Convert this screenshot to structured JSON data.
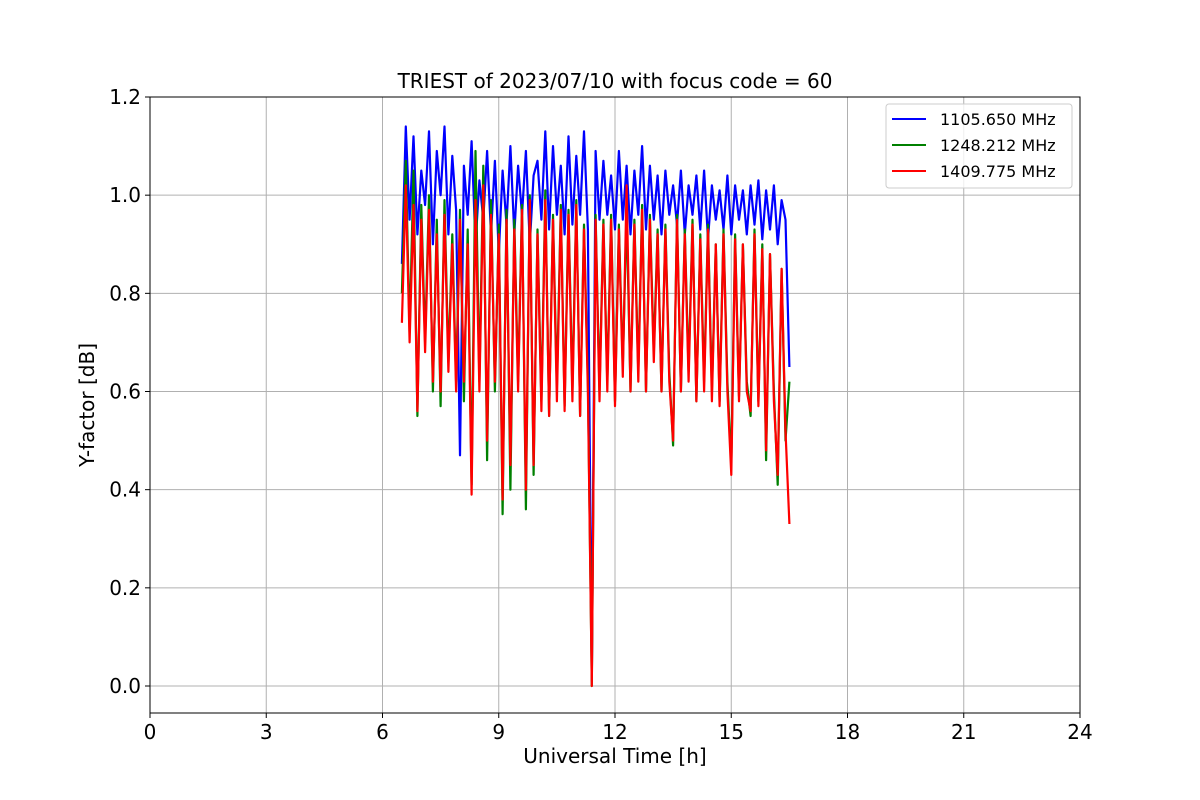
{
  "chart_data": {
    "type": "line",
    "title": "TRIEST of 2023/07/10 with focus code = 60",
    "xlabel": "Universal Time [h]",
    "ylabel": "Y-factor [dB]",
    "xlim": [
      0,
      24
    ],
    "ylim": [
      -0.055,
      1.2
    ],
    "xticks": [
      0,
      3,
      6,
      9,
      12,
      15,
      18,
      21,
      24
    ],
    "xtick_labels": [
      "0",
      "3",
      "6",
      "9",
      "12",
      "15",
      "18",
      "21",
      "24"
    ],
    "yticks": [
      0.0,
      0.2,
      0.4,
      0.6,
      0.8,
      1.0,
      1.2
    ],
    "ytick_labels": [
      "0.0",
      "0.2",
      "0.4",
      "0.6",
      "0.8",
      "1.0",
      "1.2"
    ],
    "grid": true,
    "legend_position": "upper right",
    "series": [
      {
        "name": "1105.650 MHz",
        "color": "#0000ff",
        "x": [
          6.5,
          6.6,
          6.7,
          6.8,
          6.9,
          7.0,
          7.1,
          7.2,
          7.3,
          7.4,
          7.5,
          7.6,
          7.7,
          7.8,
          7.9,
          8.0,
          8.1,
          8.2,
          8.3,
          8.4,
          8.5,
          8.6,
          8.7,
          8.8,
          8.9,
          9.0,
          9.1,
          9.2,
          9.3,
          9.4,
          9.5,
          9.6,
          9.7,
          9.8,
          9.9,
          10.0,
          10.1,
          10.2,
          10.3,
          10.4,
          10.5,
          10.6,
          10.7,
          10.8,
          10.9,
          11.0,
          11.1,
          11.2,
          11.3,
          11.4,
          11.5,
          11.6,
          11.7,
          11.8,
          11.9,
          12.0,
          12.1,
          12.2,
          12.3,
          12.4,
          12.5,
          12.6,
          12.7,
          12.8,
          12.9,
          13.0,
          13.1,
          13.2,
          13.3,
          13.4,
          13.5,
          13.6,
          13.7,
          13.8,
          13.9,
          14.0,
          14.1,
          14.2,
          14.3,
          14.4,
          14.5,
          14.6,
          14.7,
          14.8,
          14.9,
          15.0,
          15.1,
          15.2,
          15.3,
          15.4,
          15.5,
          15.6,
          15.7,
          15.8,
          15.9,
          16.0,
          16.1,
          16.2,
          16.3,
          16.4,
          16.5
        ],
        "y": [
          0.86,
          1.14,
          0.95,
          1.12,
          0.92,
          1.05,
          0.98,
          1.13,
          0.9,
          1.09,
          1.0,
          1.14,
          0.92,
          1.08,
          0.97,
          0.47,
          1.06,
          0.96,
          1.11,
          0.9,
          1.03,
          0.95,
          1.09,
          0.92,
          1.07,
          0.88,
          1.05,
          0.94,
          1.1,
          0.92,
          1.06,
          0.96,
          1.09,
          0.9,
          1.04,
          1.07,
          0.95,
          1.13,
          0.93,
          1.1,
          0.96,
          1.06,
          0.92,
          1.12,
          0.94,
          1.08,
          0.96,
          1.13,
          0.93,
          0.01,
          1.09,
          0.95,
          1.07,
          0.96,
          1.04,
          0.93,
          1.09,
          0.95,
          1.06,
          0.92,
          1.05,
          0.96,
          1.1,
          0.93,
          1.06,
          0.95,
          1.04,
          0.92,
          1.05,
          0.96,
          1.02,
          0.94,
          1.05,
          0.92,
          1.02,
          0.96,
          1.04,
          0.93,
          1.05,
          0.91,
          1.02,
          0.95,
          1.01,
          0.93,
          1.04,
          0.92,
          1.02,
          0.95,
          1.01,
          0.92,
          1.02,
          0.94,
          1.03,
          0.91,
          1.01,
          0.93,
          1.02,
          0.9,
          0.99,
          0.95,
          0.65
        ]
      },
      {
        "name": "1248.212 MHz",
        "color": "#008000",
        "x": [
          6.5,
          6.6,
          6.7,
          6.8,
          6.9,
          7.0,
          7.1,
          7.2,
          7.3,
          7.4,
          7.5,
          7.6,
          7.7,
          7.8,
          7.9,
          8.0,
          8.1,
          8.2,
          8.3,
          8.4,
          8.5,
          8.6,
          8.7,
          8.8,
          8.9,
          9.0,
          9.1,
          9.2,
          9.3,
          9.4,
          9.5,
          9.6,
          9.7,
          9.8,
          9.9,
          10.0,
          10.1,
          10.2,
          10.3,
          10.4,
          10.5,
          10.6,
          10.7,
          10.8,
          10.9,
          11.0,
          11.1,
          11.2,
          11.3,
          11.4,
          11.5,
          11.6,
          11.7,
          11.8,
          11.9,
          12.0,
          12.1,
          12.2,
          12.3,
          12.4,
          12.5,
          12.6,
          12.7,
          12.8,
          12.9,
          13.0,
          13.1,
          13.2,
          13.3,
          13.4,
          13.5,
          13.6,
          13.7,
          13.8,
          13.9,
          14.0,
          14.1,
          14.2,
          14.3,
          14.4,
          14.5,
          14.6,
          14.7,
          14.8,
          14.9,
          15.0,
          15.1,
          15.2,
          15.3,
          15.4,
          15.5,
          15.6,
          15.7,
          15.8,
          15.9,
          16.0,
          16.1,
          16.2,
          16.3,
          16.4,
          16.5
        ],
        "y": [
          0.8,
          1.07,
          0.72,
          1.05,
          0.55,
          0.98,
          0.7,
          1.0,
          0.6,
          0.95,
          0.57,
          0.99,
          0.66,
          0.92,
          0.62,
          0.97,
          0.58,
          0.93,
          0.41,
          1.09,
          0.62,
          1.06,
          0.46,
          0.99,
          0.6,
          0.94,
          0.35,
          0.97,
          0.4,
          0.95,
          0.62,
          0.98,
          0.36,
          1.0,
          0.43,
          0.93,
          0.58,
          1.01,
          0.55,
          0.96,
          0.61,
          0.98,
          0.57,
          0.97,
          0.6,
          0.99,
          0.55,
          0.94,
          0.62,
          0.0,
          0.96,
          0.6,
          0.95,
          0.62,
          0.96,
          0.58,
          0.94,
          0.65,
          0.97,
          0.6,
          0.95,
          0.64,
          0.98,
          0.6,
          0.96,
          0.68,
          0.93,
          0.6,
          0.94,
          0.64,
          0.49,
          0.96,
          0.6,
          0.93,
          0.64,
          0.95,
          0.58,
          0.92,
          0.62,
          0.94,
          0.6,
          0.9,
          0.58,
          0.93,
          0.62,
          0.45,
          0.92,
          0.59,
          0.9,
          0.62,
          0.55,
          0.93,
          0.58,
          0.9,
          0.46,
          0.88,
          0.6,
          0.41,
          0.85,
          0.5,
          0.62
        ]
      },
      {
        "name": "1409.775 MHz",
        "color": "#ff0000",
        "x": [
          6.5,
          6.6,
          6.7,
          6.8,
          6.9,
          7.0,
          7.1,
          7.2,
          7.3,
          7.4,
          7.5,
          7.6,
          7.7,
          7.8,
          7.9,
          8.0,
          8.1,
          8.2,
          8.3,
          8.4,
          8.5,
          8.6,
          8.7,
          8.8,
          8.9,
          9.0,
          9.1,
          9.2,
          9.3,
          9.4,
          9.5,
          9.6,
          9.7,
          9.8,
          9.9,
          10.0,
          10.1,
          10.2,
          10.3,
          10.4,
          10.5,
          10.6,
          10.7,
          10.8,
          10.9,
          11.0,
          11.1,
          11.2,
          11.3,
          11.4,
          11.5,
          11.6,
          11.7,
          11.8,
          11.9,
          12.0,
          12.1,
          12.2,
          12.3,
          12.4,
          12.5,
          12.6,
          12.7,
          12.8,
          12.9,
          13.0,
          13.1,
          13.2,
          13.3,
          13.4,
          13.5,
          13.6,
          13.7,
          13.8,
          13.9,
          14.0,
          14.1,
          14.2,
          14.3,
          14.4,
          14.5,
          14.6,
          14.7,
          14.8,
          14.9,
          15.0,
          15.1,
          15.2,
          15.3,
          15.4,
          15.5,
          15.6,
          15.7,
          15.8,
          15.9,
          16.0,
          16.1,
          16.2,
          16.3,
          16.4,
          16.5
        ],
        "y": [
          0.74,
          1.02,
          0.7,
          0.98,
          0.56,
          0.95,
          0.68,
          0.97,
          0.62,
          0.92,
          0.6,
          0.96,
          0.64,
          0.9,
          0.6,
          0.95,
          0.62,
          0.9,
          0.39,
          0.99,
          0.6,
          1.02,
          0.5,
          0.96,
          0.62,
          0.92,
          0.38,
          0.95,
          0.45,
          0.93,
          0.6,
          0.97,
          0.4,
          0.99,
          0.45,
          0.92,
          0.56,
          0.99,
          0.55,
          0.95,
          0.58,
          0.97,
          0.56,
          0.96,
          0.58,
          0.98,
          0.55,
          0.93,
          0.6,
          0.0,
          0.95,
          0.58,
          0.94,
          0.6,
          0.95,
          0.57,
          0.93,
          0.63,
          1.02,
          0.6,
          0.94,
          0.62,
          0.97,
          0.6,
          0.95,
          0.66,
          0.92,
          0.6,
          0.93,
          0.62,
          0.5,
          0.95,
          0.6,
          0.92,
          0.62,
          0.94,
          0.58,
          0.91,
          0.6,
          0.93,
          0.58,
          0.9,
          0.57,
          0.92,
          0.6,
          0.43,
          0.91,
          0.58,
          0.9,
          0.6,
          0.56,
          0.92,
          0.57,
          0.89,
          0.48,
          0.88,
          0.58,
          0.43,
          0.85,
          0.52,
          0.33
        ]
      }
    ]
  }
}
